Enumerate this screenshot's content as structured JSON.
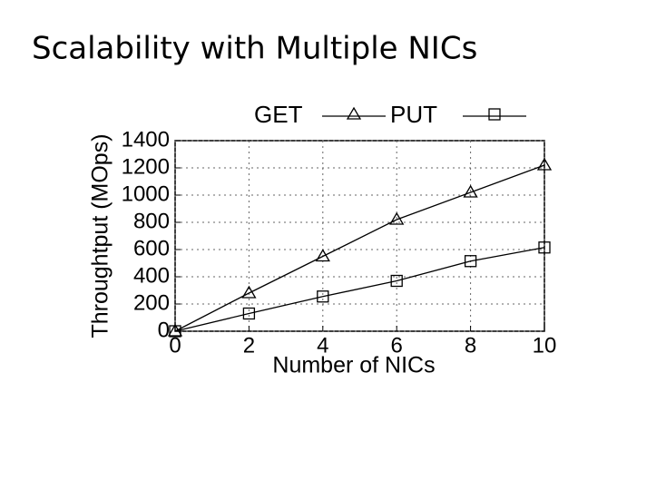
{
  "slide_title": "Scalability with Multiple NICs",
  "chart_data": {
    "type": "line",
    "x_label": "Number of NICs",
    "y_label": "Throughtput (MOps)",
    "x": [
      0,
      2,
      4,
      6,
      8,
      10
    ],
    "series": [
      {
        "name": "GET",
        "color": "#000000",
        "marker": "triangle",
        "values": [
          0,
          280,
          550,
          820,
          1020,
          1220
        ]
      },
      {
        "name": "PUT",
        "color": "#000000",
        "marker": "square",
        "values": [
          0,
          130,
          255,
          370,
          515,
          615
        ]
      }
    ],
    "xlim": [
      0,
      10
    ],
    "xticks": [
      0,
      2,
      4,
      6,
      8,
      10
    ],
    "ylim": [
      0,
      1400
    ],
    "yticks": [
      0,
      200,
      400,
      600,
      800,
      1000,
      1200,
      1400
    ],
    "grid": true,
    "legend": "top"
  }
}
